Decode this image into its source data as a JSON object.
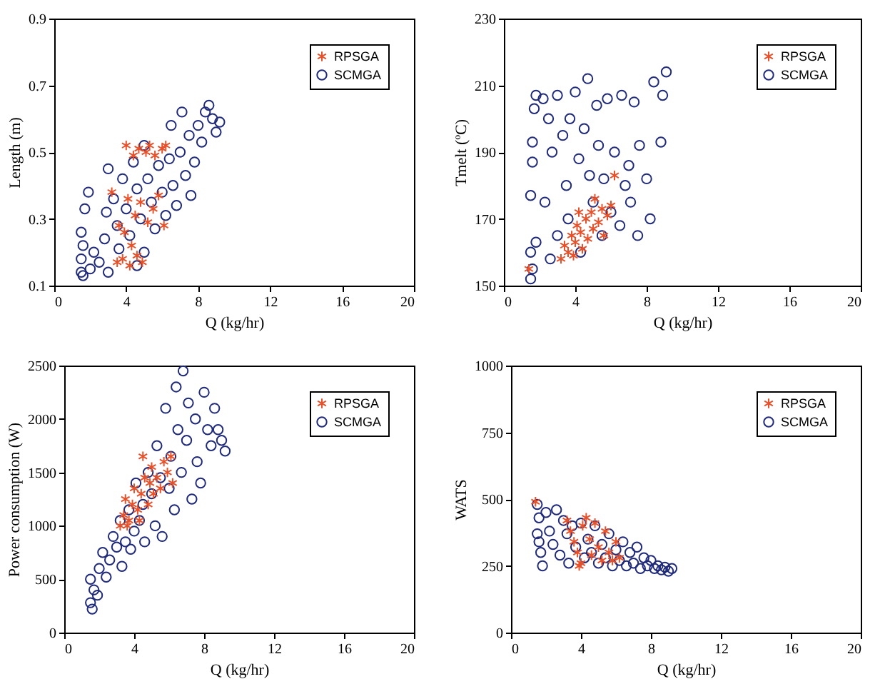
{
  "chart_data": [
    {
      "type": "scatter",
      "xlabel": "Q (kg/hr)",
      "ylabel": "Length (m)",
      "xlim": [
        0,
        20
      ],
      "xticks": [
        0,
        4,
        8,
        12,
        16,
        20
      ],
      "ylim": [
        0.1,
        0.9
      ],
      "yticks": [
        0.1,
        0.3,
        0.5,
        0.7,
        0.9
      ],
      "grid": false,
      "legend": "top right",
      "series": [
        {
          "name": "RPSGA",
          "color": "#e8502a",
          "marker": "cross",
          "x": [
            3.2,
            3.6,
            3.8,
            4.0,
            4.1,
            4.2,
            4.4,
            4.5,
            4.6,
            4.7,
            4.8,
            4.9,
            5.1,
            5.2,
            5.3,
            5.5,
            5.6,
            5.8,
            6.0,
            6.2,
            6.1,
            3.5,
            4.3,
            3.9
          ],
          "values": [
            0.38,
            0.28,
            0.18,
            0.52,
            0.36,
            0.16,
            0.49,
            0.31,
            0.19,
            0.51,
            0.35,
            0.17,
            0.5,
            0.29,
            0.52,
            0.33,
            0.49,
            0.37,
            0.51,
            0.52,
            0.28,
            0.17,
            0.22,
            0.26
          ]
        },
        {
          "name": "SCMGA",
          "color": "#1f2a7a",
          "marker": "circle",
          "x": [
            1.5,
            1.6,
            2.0,
            1.5,
            1.6,
            1.5,
            1.7,
            1.9,
            2.2,
            2.5,
            2.8,
            2.9,
            3.0,
            3.3,
            3.5,
            3.6,
            3.8,
            4.0,
            4.2,
            4.4,
            4.6,
            4.8,
            5.0,
            5.2,
            5.4,
            5.6,
            5.8,
            6.0,
            6.2,
            6.4,
            6.5,
            6.6,
            6.8,
            7.0,
            7.1,
            7.3,
            7.5,
            7.6,
            7.8,
            8.0,
            8.2,
            8.4,
            8.6,
            8.8,
            9.0,
            9.2,
            5.0,
            4.6,
            3.0
          ],
          "values": [
            0.14,
            0.13,
            0.15,
            0.18,
            0.22,
            0.26,
            0.33,
            0.38,
            0.2,
            0.17,
            0.24,
            0.32,
            0.45,
            0.36,
            0.28,
            0.21,
            0.42,
            0.33,
            0.25,
            0.47,
            0.39,
            0.3,
            0.52,
            0.42,
            0.35,
            0.27,
            0.46,
            0.38,
            0.31,
            0.48,
            0.58,
            0.4,
            0.34,
            0.5,
            0.62,
            0.43,
            0.55,
            0.37,
            0.47,
            0.58,
            0.53,
            0.62,
            0.64,
            0.6,
            0.56,
            0.59,
            0.2,
            0.16,
            0.14
          ]
        }
      ]
    },
    {
      "type": "scatter",
      "xlabel": "Q (kg/hr)",
      "ylabel": "Tmelt (ºC)",
      "xlim": [
        0,
        20
      ],
      "xticks": [
        0,
        4,
        8,
        12,
        16,
        20
      ],
      "ylim": [
        150,
        230
      ],
      "yticks": [
        150,
        170,
        190,
        210,
        230
      ],
      "grid": false,
      "legend": "top right",
      "series": [
        {
          "name": "RPSGA",
          "color": "#e8502a",
          "marker": "cross",
          "x": [
            1.4,
            3.2,
            3.4,
            3.6,
            3.8,
            4.0,
            4.1,
            4.3,
            4.4,
            4.6,
            4.7,
            4.9,
            5.0,
            5.1,
            5.3,
            5.5,
            5.6,
            5.8,
            6.0,
            6.2,
            4.2,
            3.9
          ],
          "values": [
            155,
            158,
            162,
            160,
            165,
            163,
            168,
            166,
            161,
            170,
            164,
            172,
            167,
            176,
            169,
            173,
            165,
            171,
            174,
            183,
            172,
            159
          ]
        },
        {
          "name": "SCMGA",
          "color": "#1f2a7a",
          "marker": "circle",
          "x": [
            1.5,
            1.6,
            1.5,
            1.8,
            1.5,
            1.6,
            1.6,
            1.7,
            1.8,
            2.2,
            2.5,
            2.7,
            2.3,
            2.6,
            3.0,
            3.0,
            3.3,
            3.5,
            3.6,
            3.7,
            4.0,
            4.2,
            4.3,
            4.5,
            4.7,
            4.8,
            5.0,
            5.2,
            5.3,
            5.5,
            5.6,
            5.8,
            6.0,
            6.2,
            6.5,
            6.6,
            6.8,
            7.0,
            7.1,
            7.3,
            7.5,
            7.6,
            8.0,
            8.2,
            8.4,
            8.8,
            8.9,
            9.1
          ],
          "values": [
            152,
            155,
            160,
            163,
            177,
            187,
            193,
            203,
            207,
            206,
            200,
            190,
            175,
            158,
            165,
            207,
            195,
            180,
            170,
            200,
            208,
            188,
            160,
            197,
            212,
            183,
            175,
            204,
            192,
            165,
            182,
            206,
            172,
            190,
            168,
            207,
            180,
            186,
            175,
            205,
            165,
            192,
            182,
            170,
            211,
            193,
            207,
            214
          ]
        }
      ]
    },
    {
      "type": "scatter",
      "xlabel": "Q (kg/hr)",
      "ylabel": "Power consumption (W)",
      "xlim": [
        0,
        20
      ],
      "xticks": [
        0,
        4,
        8,
        12,
        16,
        20
      ],
      "ylim": [
        0,
        2500
      ],
      "yticks": [
        0,
        500,
        1000,
        1500,
        2000,
        2500
      ],
      "grid": false,
      "legend": "top right",
      "series": [
        {
          "name": "RPSGA",
          "color": "#e8502a",
          "marker": "cross",
          "x": [
            3.2,
            3.4,
            3.5,
            3.7,
            3.9,
            4.0,
            4.2,
            4.4,
            4.5,
            4.6,
            4.8,
            4.9,
            5.0,
            5.1,
            5.3,
            5.5,
            5.7,
            5.9,
            6.1,
            6.2,
            3.6,
            4.3
          ],
          "values": [
            1000,
            1100,
            1250,
            1050,
            1200,
            1350,
            1150,
            1300,
            1650,
            1450,
            1200,
            1400,
            1550,
            1300,
            1450,
            1350,
            1600,
            1500,
            1650,
            1400,
            1000,
            1050
          ]
        },
        {
          "name": "SCMGA",
          "color": "#1f2a7a",
          "marker": "circle",
          "x": [
            1.5,
            1.6,
            1.7,
            1.5,
            1.9,
            2.0,
            2.2,
            2.4,
            2.6,
            2.8,
            3.0,
            3.2,
            3.3,
            3.5,
            3.7,
            3.8,
            4.0,
            4.1,
            4.3,
            4.5,
            4.6,
            4.8,
            5.0,
            5.2,
            5.3,
            5.5,
            5.6,
            5.8,
            6.0,
            6.1,
            6.3,
            6.4,
            6.5,
            6.7,
            6.8,
            7.0,
            7.1,
            7.3,
            7.5,
            7.6,
            7.8,
            8.0,
            8.2,
            8.4,
            8.6,
            8.8,
            9.0,
            9.2
          ],
          "values": [
            280,
            220,
            400,
            500,
            350,
            600,
            750,
            520,
            680,
            900,
            800,
            1050,
            620,
            850,
            1150,
            780,
            950,
            1400,
            1050,
            1200,
            850,
            1500,
            1300,
            1000,
            1750,
            1450,
            900,
            2100,
            1350,
            1650,
            1150,
            2300,
            1900,
            1500,
            2450,
            1800,
            2150,
            1250,
            2000,
            1600,
            1400,
            2250,
            1900,
            1750,
            2100,
            1900,
            1800,
            1700
          ]
        }
      ]
    },
    {
      "type": "scatter",
      "xlabel": "Q (kg/hr)",
      "ylabel": "WATS",
      "xlim": [
        0,
        20
      ],
      "xticks": [
        0,
        4,
        8,
        12,
        16,
        20
      ],
      "ylim": [
        0,
        1000
      ],
      "yticks": [
        0,
        250,
        500,
        750,
        1000
      ],
      "grid": false,
      "legend": "top right",
      "series": [
        {
          "name": "RPSGA",
          "color": "#e8502a",
          "marker": "cross",
          "x": [
            1.4,
            3.2,
            3.4,
            3.6,
            3.8,
            4.0,
            4.1,
            4.3,
            4.5,
            4.6,
            4.8,
            5.0,
            5.2,
            5.4,
            5.6,
            5.8,
            6.0,
            6.2,
            3.9
          ],
          "values": [
            490,
            420,
            380,
            340,
            300,
            260,
            400,
            430,
            350,
            290,
            410,
            320,
            270,
            380,
            300,
            270,
            340,
            280,
            250
          ]
        },
        {
          "name": "SCMGA",
          "color": "#1f2a7a",
          "marker": "circle",
          "x": [
            1.5,
            1.6,
            1.5,
            1.7,
            1.8,
            1.6,
            2.0,
            2.2,
            2.4,
            2.6,
            2.8,
            3.0,
            3.2,
            3.3,
            3.5,
            3.7,
            4.0,
            4.2,
            4.4,
            4.6,
            4.8,
            5.0,
            5.2,
            5.4,
            5.6,
            5.8,
            6.0,
            6.2,
            6.4,
            6.6,
            6.8,
            7.0,
            7.2,
            7.4,
            7.6,
            7.8,
            8.0,
            8.2,
            8.4,
            8.6,
            8.8,
            9.0,
            9.2
          ],
          "values": [
            480,
            430,
            370,
            300,
            250,
            340,
            450,
            380,
            330,
            460,
            290,
            420,
            370,
            260,
            400,
            320,
            410,
            280,
            350,
            300,
            400,
            260,
            330,
            280,
            370,
            250,
            310,
            270,
            340,
            250,
            300,
            260,
            320,
            240,
            280,
            250,
            270,
            240,
            250,
            235,
            245,
            230,
            240
          ]
        }
      ]
    }
  ]
}
